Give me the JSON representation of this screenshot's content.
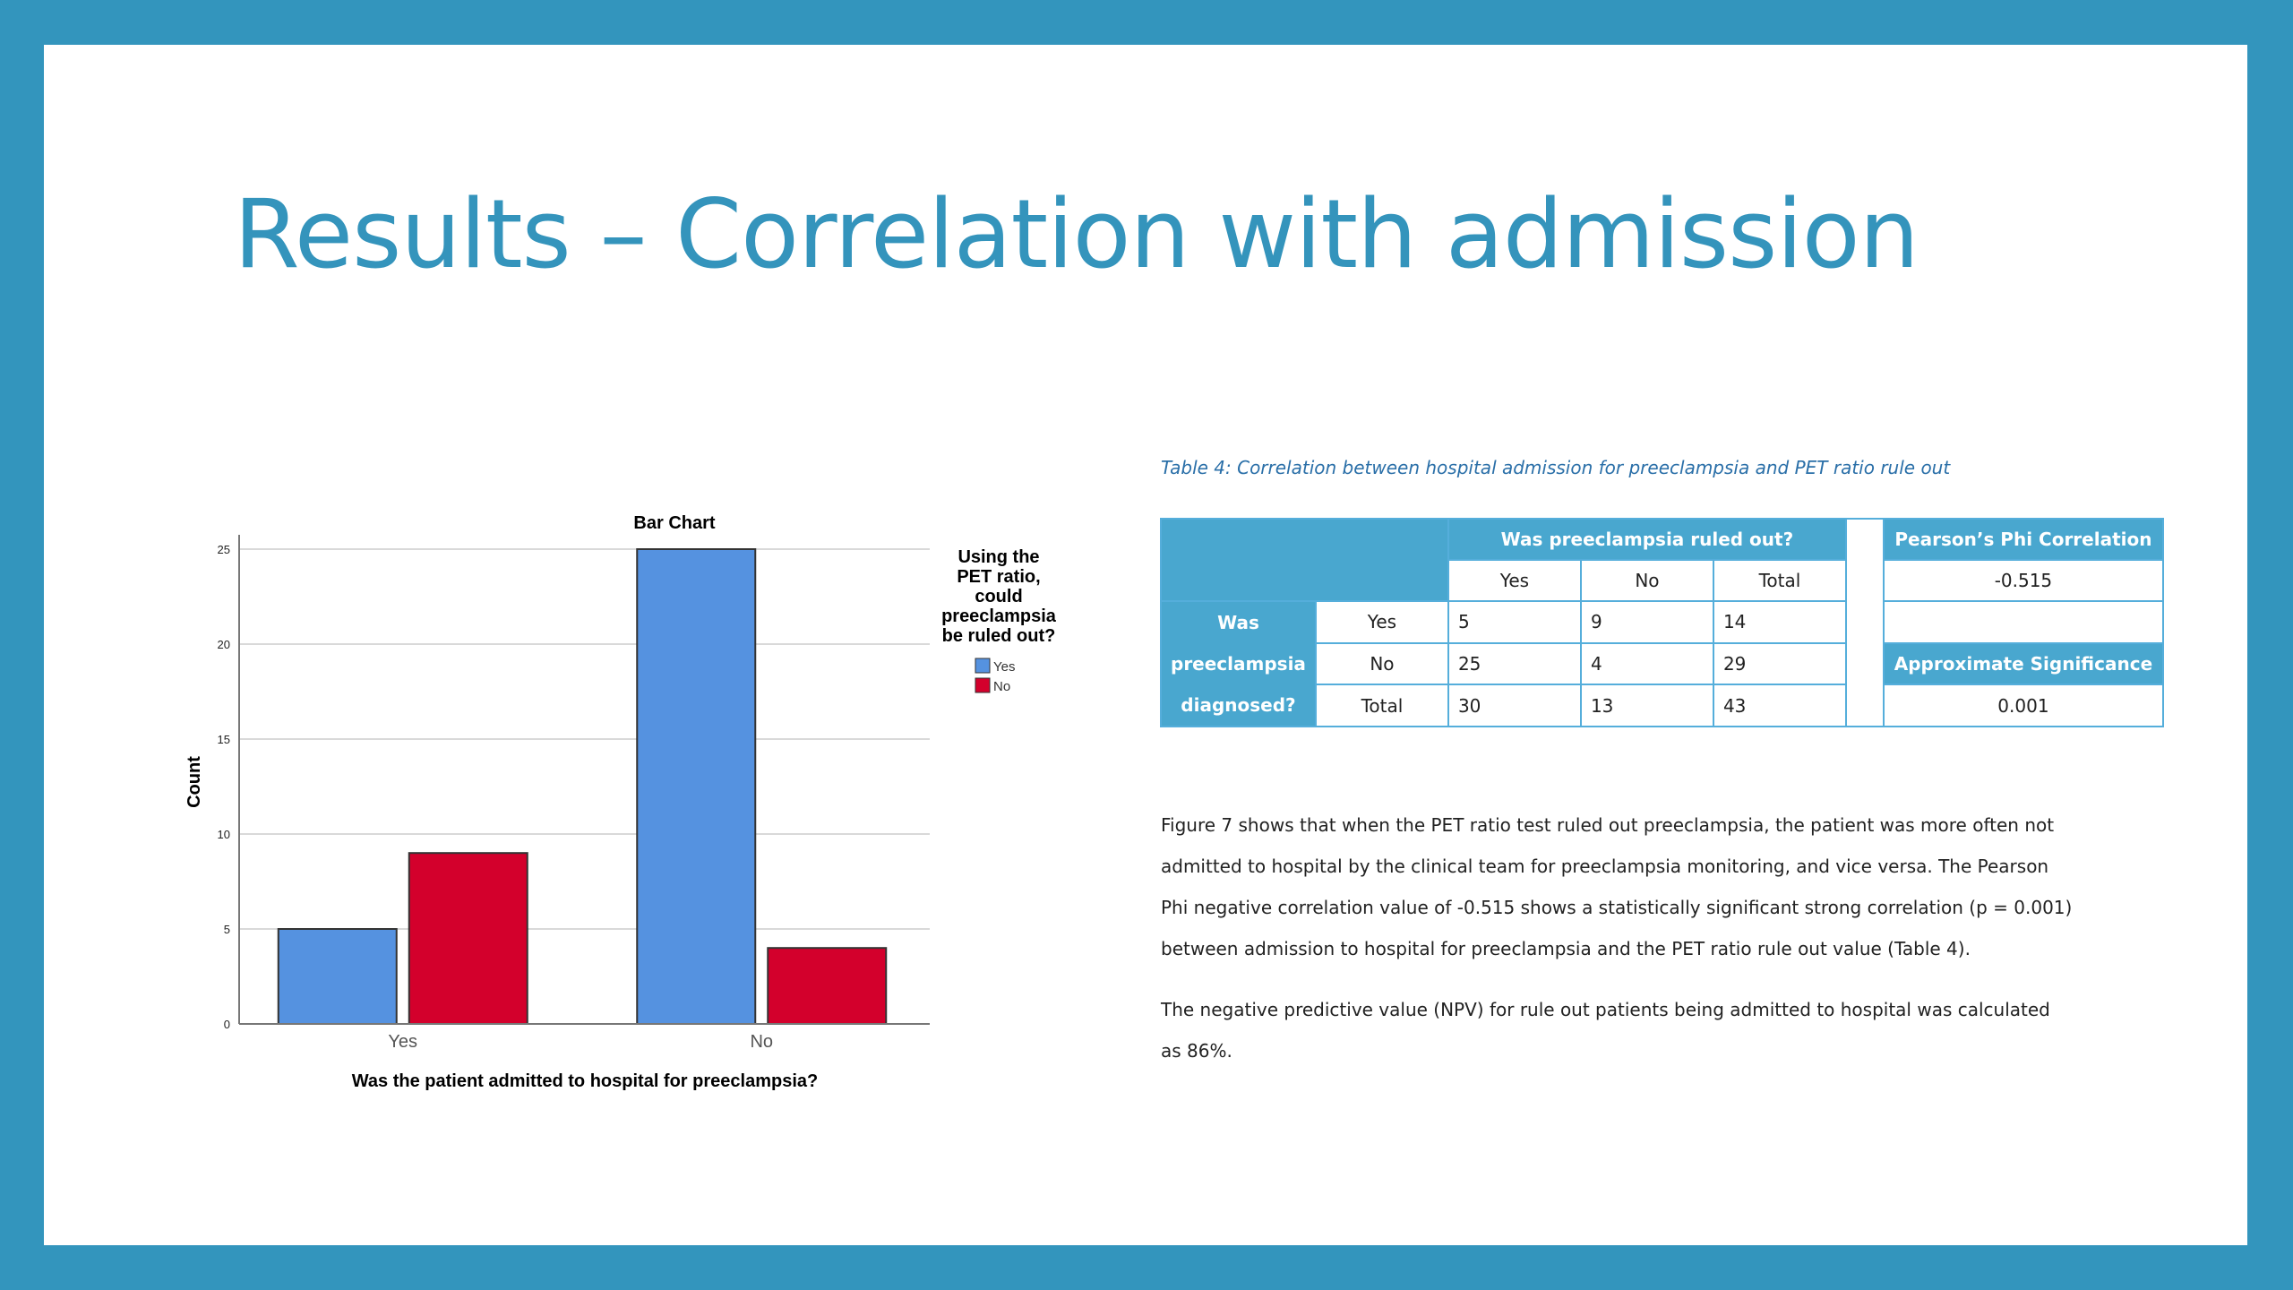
{
  "slide": {
    "title": "Results – Correlation with admission"
  },
  "colors": {
    "frame": "#3395bd",
    "title": "#3494bc",
    "yes_bar": "#5592e0",
    "no_bar": "#d3002c",
    "table_header": "#49a7cf"
  },
  "chart_data": {
    "type": "bar",
    "title": "Bar Chart",
    "categories": [
      "Yes",
      "No"
    ],
    "series": [
      {
        "name": "Yes",
        "values": [
          5,
          25
        ],
        "color": "#5592e0"
      },
      {
        "name": "No",
        "values": [
          9,
          4
        ],
        "color": "#d3002c"
      }
    ],
    "xlabel": "Was the patient admitted to hospital for preeclampsia?",
    "ylabel": "Count",
    "ylim": [
      0,
      25
    ],
    "yticks": [
      "0",
      "5",
      "10",
      "15",
      "20",
      "25"
    ],
    "grid": true,
    "legend": {
      "title_lines": [
        "Using the",
        "PET ratio,",
        "could",
        "preeclampsia",
        "be ruled out?"
      ],
      "placement": "right"
    }
  },
  "table": {
    "caption": "Table 4: Correlation between hospital admission for preeclampsia and PET ratio rule out",
    "col_group_header": "Was preeclampsia ruled out?",
    "col_headers": [
      "Yes",
      "No",
      "Total"
    ],
    "row_group_header_lines": [
      "Was",
      "preeclampsia",
      "diagnosed?"
    ],
    "rows": [
      {
        "label": "Yes",
        "values": [
          "5",
          "9",
          "14"
        ]
      },
      {
        "label": "No",
        "values": [
          "25",
          "4",
          "29"
        ]
      },
      {
        "label": "Total",
        "values": [
          "30",
          "13",
          "43"
        ]
      }
    ],
    "phi_header": "Pearson’s Phi Correlation",
    "phi_value": "-0.515",
    "sig_header": "Approximate Significance",
    "sig_value": "0.001"
  },
  "text": {
    "para1": [
      "Figure 7 shows that when the PET ratio test ruled out preeclampsia, the patient was more often not",
      "admitted to hospital by the clinical team for preeclampsia monitoring, and vice versa. The Pearson",
      "Phi negative correlation value of -0.515 shows a statistically significant strong correlation (p = 0.001)",
      "between admission to hospital for preeclampsia and the PET ratio rule out value (Table 4)."
    ],
    "para2": [
      "The negative predictive value (NPV) for rule out patients being admitted to hospital was calculated",
      "as 86%."
    ]
  }
}
